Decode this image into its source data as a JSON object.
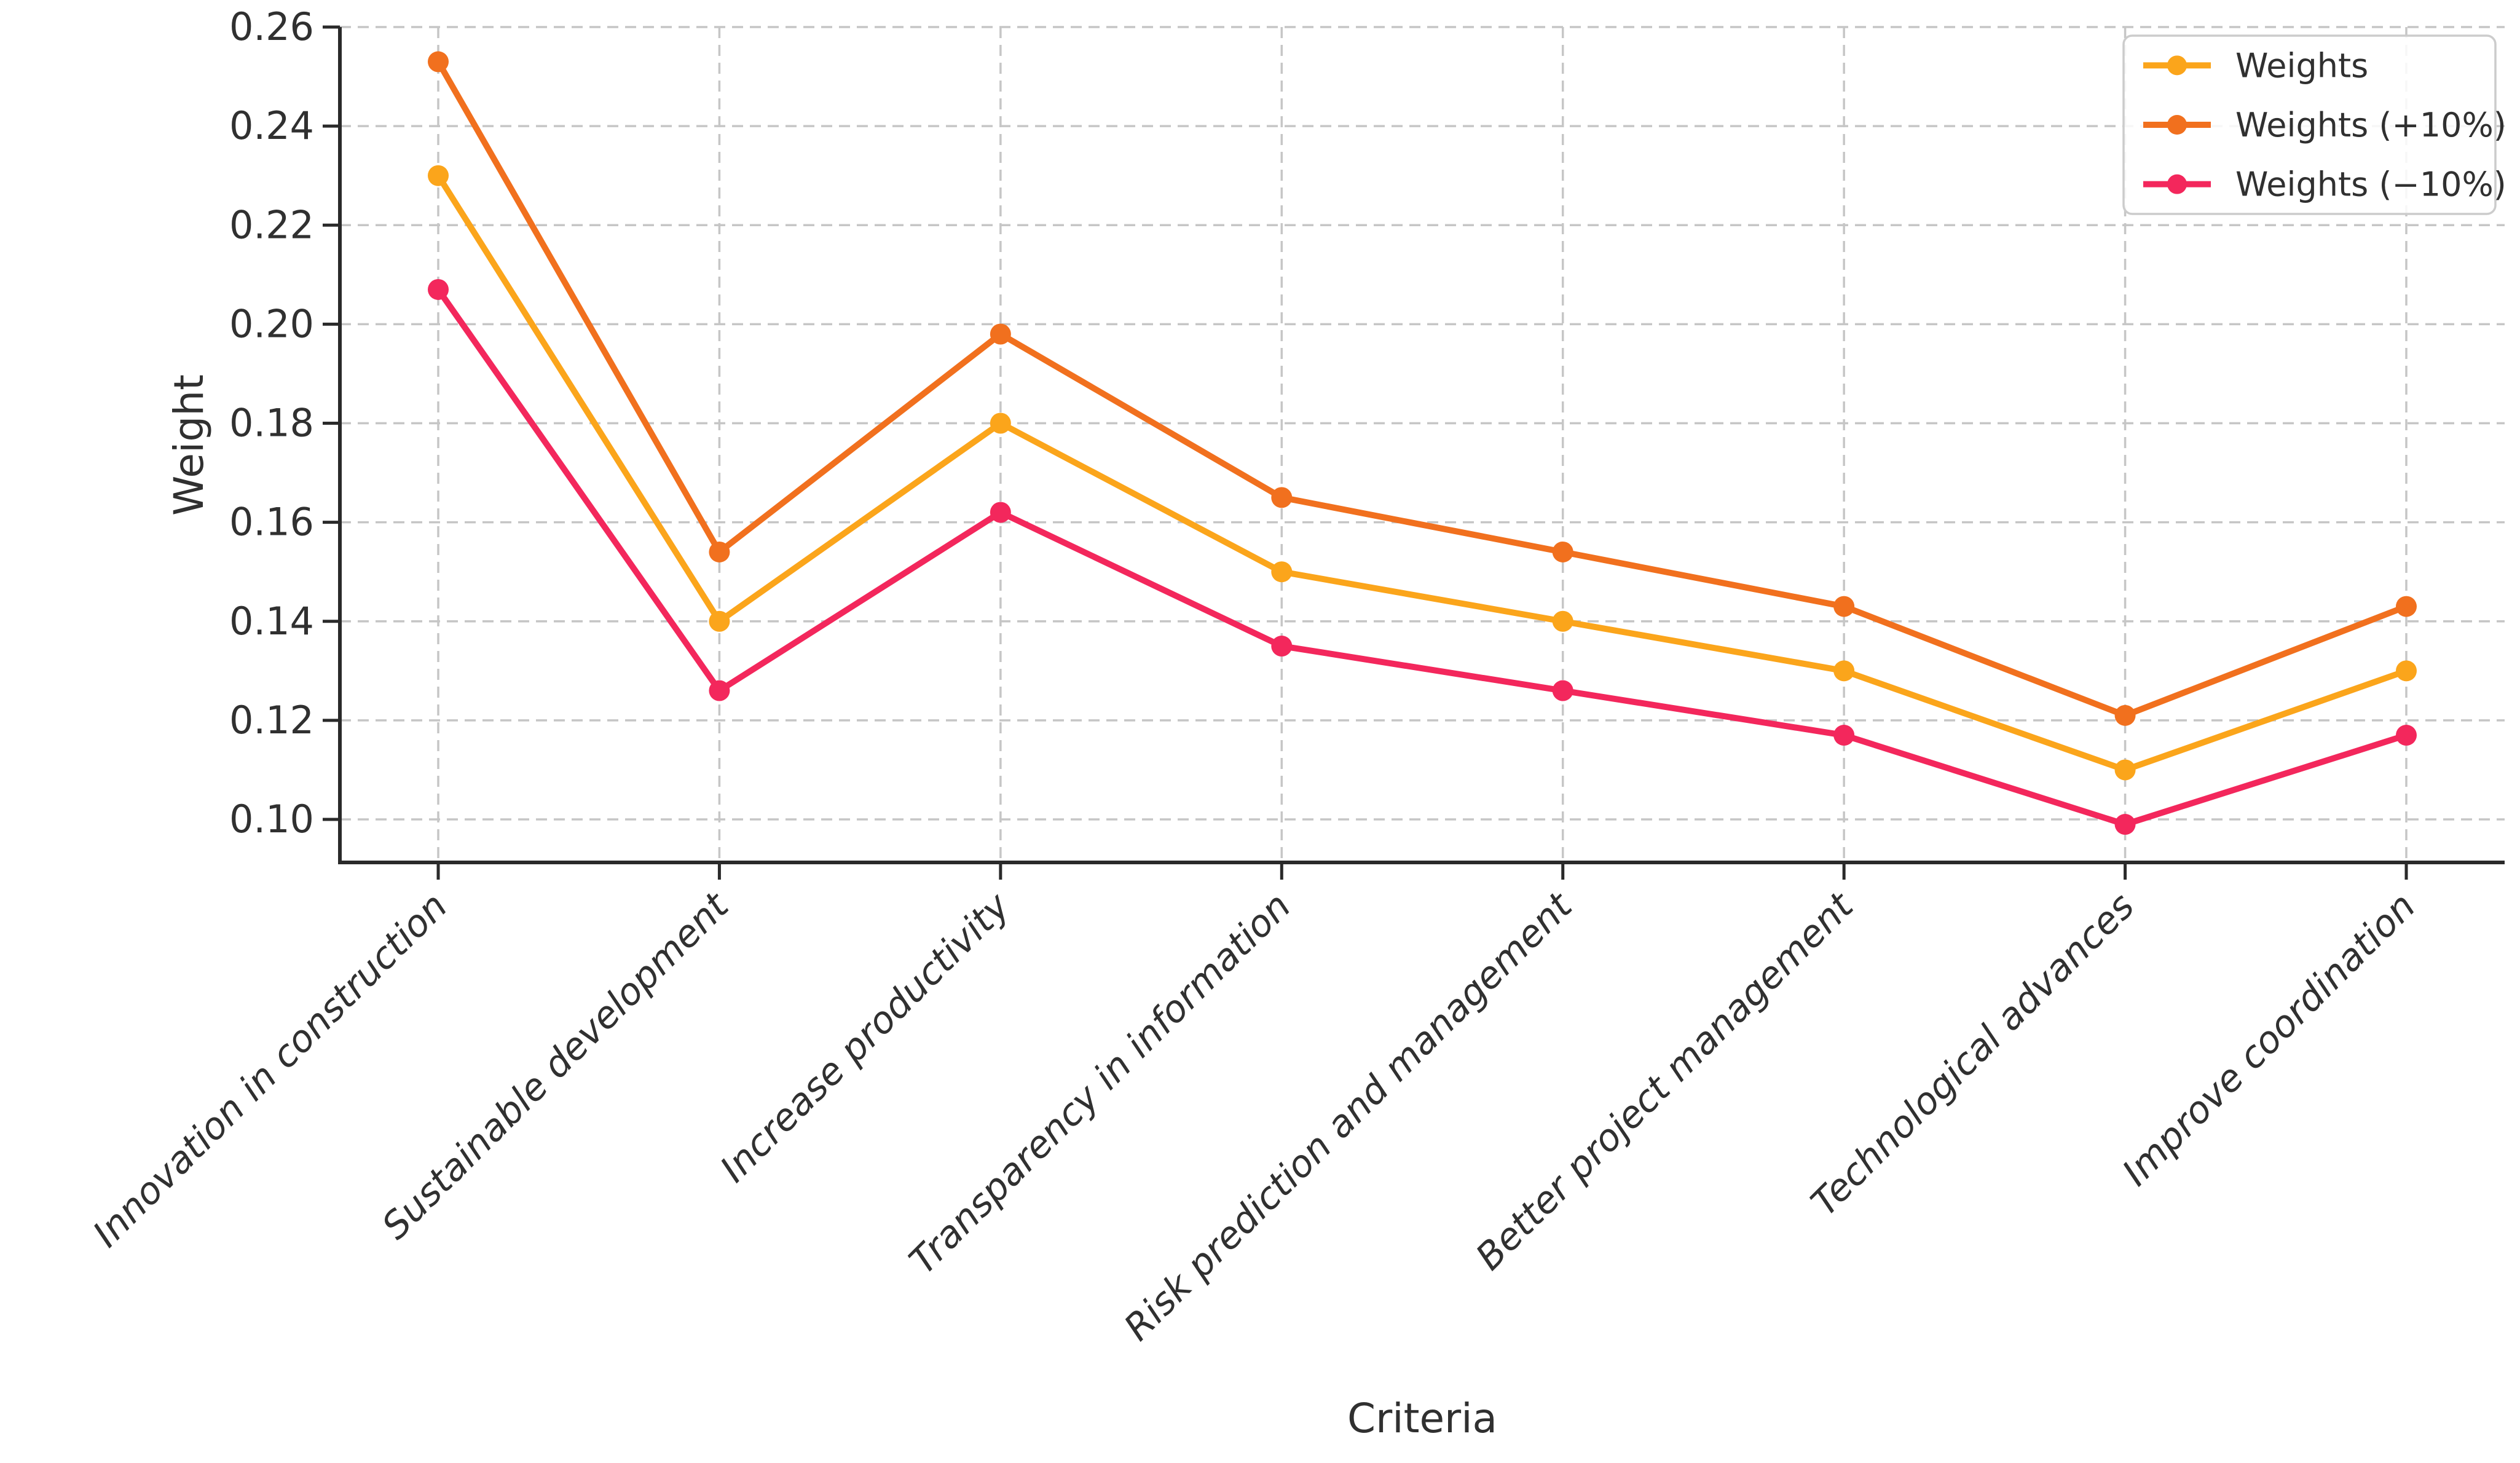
{
  "figure": {
    "background": "#ffffff"
  },
  "chart_data": {
    "type": "line",
    "title": "",
    "xlabel": "Criteria",
    "ylabel": "Weight",
    "categories": [
      "Innovation in construction",
      "Sustainable development",
      "Increase productivity",
      "Transparency in information",
      "Risk prediction and management",
      "Better project management",
      "Technological advances",
      "Improve coordination"
    ],
    "series": [
      {
        "name": "Weights",
        "color": "#FBA51B",
        "values": [
          0.23,
          0.14,
          0.18,
          0.15,
          0.14,
          0.13,
          0.11,
          0.13
        ]
      },
      {
        "name": "Weights (+10%)",
        "color": "#F1701E",
        "values": [
          0.253,
          0.154,
          0.198,
          0.165,
          0.154,
          0.143,
          0.121,
          0.143
        ]
      },
      {
        "name": "Weights (−10%)",
        "color": "#F3275C",
        "values": [
          0.207,
          0.126,
          0.162,
          0.135,
          0.126,
          0.117,
          0.099,
          0.117
        ]
      }
    ],
    "y_ticks": [
      0.1,
      0.12,
      0.14,
      0.16,
      0.18,
      0.2,
      0.22,
      0.24,
      0.26
    ],
    "ylim": [
      0.091,
      0.26
    ],
    "grid": true,
    "grid_style": "dashed",
    "legend": {
      "position": "upper right",
      "entries": [
        "Weights",
        "Weights (+10%)",
        "Weights (−10%)"
      ]
    },
    "style": {
      "grid_color": "#c6c6c6",
      "axis_color": "#2a2a2a",
      "text_color": "#303030",
      "legend_border_color": "#cccccc",
      "x_tick_label_style": "italic"
    }
  }
}
